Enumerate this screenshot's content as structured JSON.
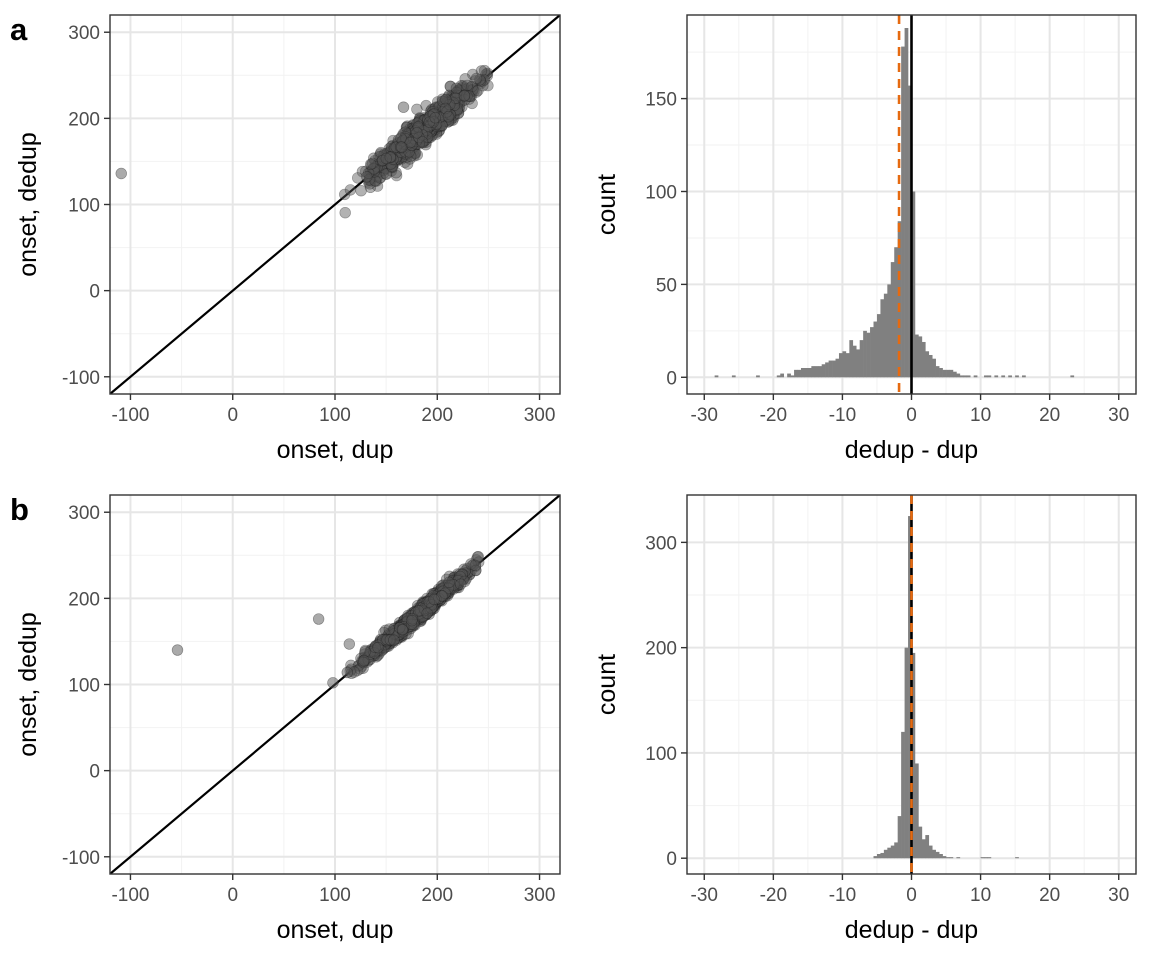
{
  "colors": {
    "grid_major": "#e6e6e6",
    "grid_minor": "#f2f2f2",
    "points": "#555555",
    "bars": "#808080",
    "mean_line": "#e66a10",
    "zero_line": "#000000"
  },
  "chart_data": [
    {
      "panel": "a",
      "type": "scatter",
      "xlabel": "onset, dup",
      "ylabel": "onset, dedup",
      "xlim": [
        -120,
        320
      ],
      "ylim": [
        -120,
        320
      ],
      "xticks": [
        -100,
        0,
        100,
        200,
        300
      ],
      "yticks": [
        -100,
        0,
        100,
        200,
        300
      ],
      "grid": true,
      "reference_line": "y = x",
      "outliers": [
        {
          "x": -109,
          "y": 136
        },
        {
          "x": 167,
          "y": 213
        }
      ],
      "cluster": {
        "x_range": [
          107,
          250
        ],
        "center_x": 185,
        "spread": 2,
        "n": 900
      }
    },
    {
      "panel": "a",
      "type": "bar",
      "xlabel": "dedup - dup",
      "ylabel": "count",
      "xlim": [
        -32.5,
        32.5
      ],
      "ylim": [
        -9,
        195
      ],
      "xticks": [
        -30,
        -20,
        -10,
        0,
        10,
        20,
        30
      ],
      "yticks": [
        0,
        50,
        100,
        150
      ],
      "grid": true,
      "bin_width": 0.5,
      "bins": [
        [
          -28.5,
          1
        ],
        [
          -26,
          1
        ],
        [
          -22.5,
          1
        ],
        [
          -19.5,
          1
        ],
        [
          -19,
          2
        ],
        [
          -18,
          2
        ],
        [
          -17.5,
          1
        ],
        [
          -17,
          4
        ],
        [
          -16.5,
          4
        ],
        [
          -16,
          5
        ],
        [
          -15.5,
          5
        ],
        [
          -15,
          5
        ],
        [
          -14.5,
          6
        ],
        [
          -14,
          6
        ],
        [
          -13.5,
          6
        ],
        [
          -13,
          7
        ],
        [
          -12.5,
          8
        ],
        [
          -12,
          9
        ],
        [
          -11.5,
          9
        ],
        [
          -11,
          10
        ],
        [
          -10.5,
          13
        ],
        [
          -10,
          14
        ],
        [
          -9.5,
          13
        ],
        [
          -9,
          20
        ],
        [
          -8.5,
          17
        ],
        [
          -8,
          15
        ],
        [
          -7.5,
          20
        ],
        [
          -7,
          25
        ],
        [
          -6.5,
          24
        ],
        [
          -6,
          27
        ],
        [
          -5.5,
          30
        ],
        [
          -5,
          34
        ],
        [
          -4.5,
          42
        ],
        [
          -4,
          45
        ],
        [
          -3.5,
          50
        ],
        [
          -3,
          62
        ],
        [
          -2.5,
          70
        ],
        [
          -2,
          84
        ],
        [
          -1.5,
          178
        ],
        [
          -1,
          188
        ],
        [
          -0.5,
          157
        ],
        [
          0,
          100
        ],
        [
          0.5,
          23
        ],
        [
          1,
          22
        ],
        [
          1.5,
          19
        ],
        [
          2,
          14
        ],
        [
          2.5,
          12
        ],
        [
          3,
          10
        ],
        [
          3.5,
          6
        ],
        [
          4,
          5
        ],
        [
          4.5,
          4
        ],
        [
          5,
          4
        ],
        [
          5.5,
          4
        ],
        [
          6,
          3
        ],
        [
          6.5,
          2
        ],
        [
          7,
          1
        ],
        [
          7.5,
          1
        ],
        [
          8,
          1
        ],
        [
          9,
          1
        ],
        [
          10.5,
          1
        ],
        [
          11,
          1
        ],
        [
          12,
          1
        ],
        [
          13,
          1
        ],
        [
          14,
          1
        ],
        [
          15,
          1
        ],
        [
          16,
          1
        ],
        [
          23,
          1
        ]
      ],
      "mean_line_x": -1.8,
      "zero_line_x": 0
    },
    {
      "panel": "b",
      "type": "scatter",
      "xlabel": "onset, dup",
      "ylabel": "onset, dedup",
      "xlim": [
        -120,
        320
      ],
      "ylim": [
        -120,
        320
      ],
      "xticks": [
        -100,
        0,
        100,
        200,
        300
      ],
      "yticks": [
        -100,
        0,
        100,
        200,
        300
      ],
      "grid": true,
      "reference_line": "y = x",
      "outliers": [
        {
          "x": -54,
          "y": 140
        },
        {
          "x": 84,
          "y": 176
        },
        {
          "x": 114,
          "y": 147
        },
        {
          "x": 98,
          "y": 102
        },
        {
          "x": 112,
          "y": 114
        }
      ],
      "cluster": {
        "x_range": [
          113,
          242
        ],
        "center_x": 180,
        "spread": 1,
        "n": 900
      }
    },
    {
      "panel": "b",
      "type": "bar",
      "xlabel": "dedup - dup",
      "ylabel": "count",
      "xlim": [
        -32.5,
        32.5
      ],
      "ylim": [
        -15,
        345
      ],
      "xticks": [
        -30,
        -20,
        -10,
        0,
        10,
        20,
        30
      ],
      "yticks": [
        0,
        100,
        200,
        300
      ],
      "grid": true,
      "bin_width": 0.5,
      "bins": [
        [
          -5.5,
          2
        ],
        [
          -5,
          4
        ],
        [
          -4.5,
          5
        ],
        [
          -4,
          8
        ],
        [
          -3.5,
          10
        ],
        [
          -3,
          12
        ],
        [
          -2.5,
          15
        ],
        [
          -2,
          40
        ],
        [
          -1.5,
          120
        ],
        [
          -1,
          200
        ],
        [
          -0.5,
          325
        ],
        [
          0,
          195
        ],
        [
          0.5,
          90
        ],
        [
          1,
          30
        ],
        [
          1.5,
          18
        ],
        [
          2,
          22
        ],
        [
          2.5,
          12
        ],
        [
          3,
          8
        ],
        [
          3.5,
          6
        ],
        [
          4,
          4
        ],
        [
          4.5,
          2
        ],
        [
          5,
          1
        ],
        [
          5.5,
          1
        ],
        [
          6.5,
          1
        ],
        [
          10,
          1
        ],
        [
          10.5,
          1
        ],
        [
          11,
          1
        ],
        [
          15,
          1
        ]
      ],
      "mean_line_x": 0,
      "zero_line_x": 0
    }
  ]
}
